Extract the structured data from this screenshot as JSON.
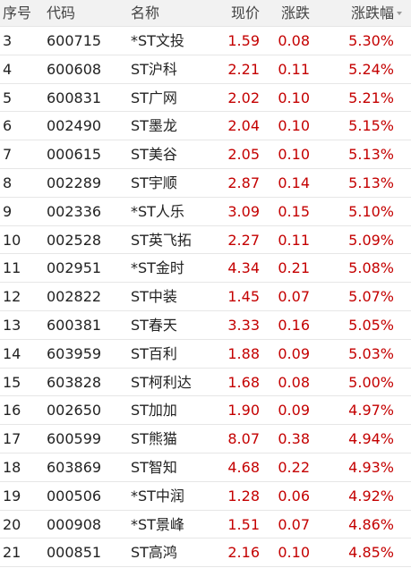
{
  "table": {
    "header": [
      "序号",
      "代码",
      "名称",
      "现价",
      "涨跌",
      "涨跌幅"
    ],
    "rows": [
      [
        "3",
        "600715",
        "*ST文投",
        "1.59",
        "0.08",
        "5.30%"
      ],
      [
        "4",
        "600608",
        "ST沪科",
        "2.21",
        "0.11",
        "5.24%"
      ],
      [
        "5",
        "600831",
        "ST广网",
        "2.02",
        "0.10",
        "5.21%"
      ],
      [
        "6",
        "002490",
        "ST墨龙",
        "2.04",
        "0.10",
        "5.15%"
      ],
      [
        "7",
        "000615",
        "ST美谷",
        "2.05",
        "0.10",
        "5.13%"
      ],
      [
        "8",
        "002289",
        "ST宇顺",
        "2.87",
        "0.14",
        "5.13%"
      ],
      [
        "9",
        "002336",
        "*ST人乐",
        "3.09",
        "0.15",
        "5.10%"
      ],
      [
        "10",
        "002528",
        "ST英飞拓",
        "2.27",
        "0.11",
        "5.09%"
      ],
      [
        "11",
        "002951",
        "*ST金时",
        "4.34",
        "0.21",
        "5.08%"
      ],
      [
        "12",
        "002822",
        "ST中装",
        "1.45",
        "0.07",
        "5.07%"
      ],
      [
        "13",
        "600381",
        "ST春天",
        "3.33",
        "0.16",
        "5.05%"
      ],
      [
        "14",
        "603959",
        "ST百利",
        "1.88",
        "0.09",
        "5.03%"
      ],
      [
        "15",
        "603828",
        "ST柯利达",
        "1.68",
        "0.08",
        "5.00%"
      ],
      [
        "16",
        "002650",
        "ST加加",
        "1.90",
        "0.09",
        "4.97%"
      ],
      [
        "17",
        "600599",
        "ST熊猫",
        "8.07",
        "0.38",
        "4.94%"
      ],
      [
        "18",
        "603869",
        "ST智知",
        "4.68",
        "0.22",
        "4.93%"
      ],
      [
        "19",
        "000506",
        "*ST中润",
        "1.28",
        "0.06",
        "4.92%"
      ],
      [
        "20",
        "000908",
        "*ST景峰",
        "1.51",
        "0.07",
        "4.86%"
      ],
      [
        "21",
        "000851",
        "ST高鸿",
        "2.16",
        "0.10",
        "4.85%"
      ]
    ]
  }
}
